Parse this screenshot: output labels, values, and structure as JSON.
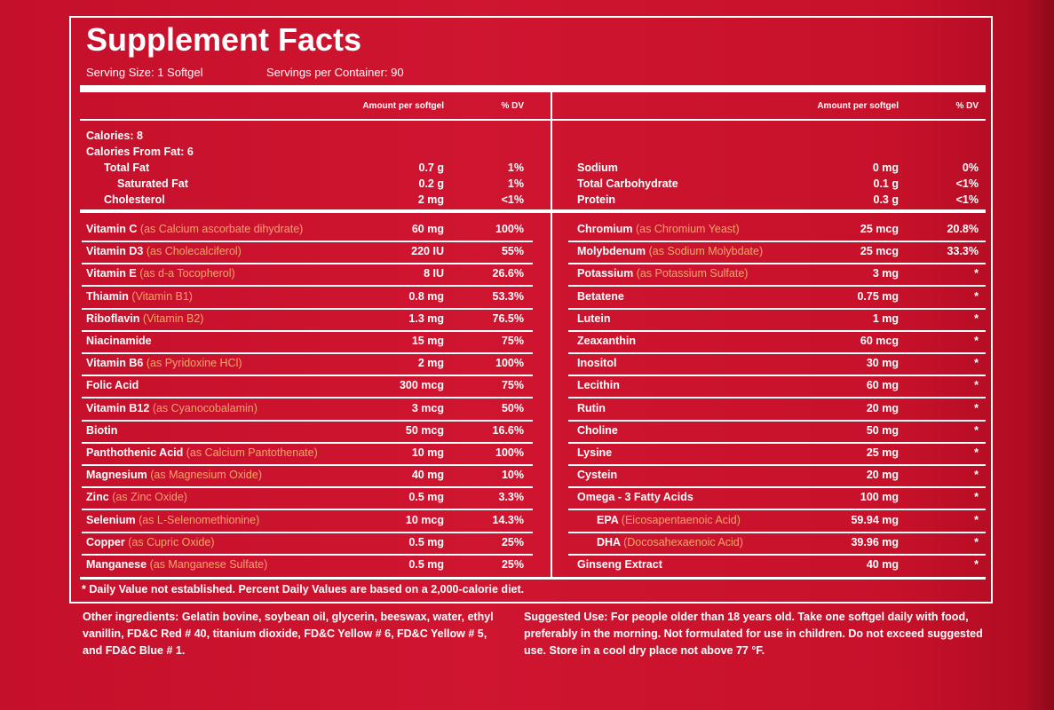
{
  "header": {
    "title": "Supplement Facts",
    "serving_size": "Serving Size: 1 Softgel",
    "servings": "Servings per Container: 90"
  },
  "columns": {
    "left": {
      "amount": "Amount per softgel",
      "dv": "% DV"
    },
    "right": {
      "amount": "Amount per softgel",
      "dv": "% DV"
    }
  },
  "calories": [
    "Calories: 8",
    "Calories From Fat: 6"
  ],
  "top_rows": {
    "left": [
      {
        "name": "Total Fat",
        "amount": "0.7 g",
        "dv": "1%"
      },
      {
        "name": "Saturated Fat",
        "amount": "0.2 g",
        "dv": "1%"
      },
      {
        "name": "Cholesterol",
        "amount": "2 mg",
        "dv": "<1%"
      }
    ],
    "right": [
      {
        "name": "Sodium",
        "amount": "0 mg",
        "dv": "0%"
      },
      {
        "name": "Total Carbohydrate",
        "amount": "0.1 g",
        "dv": "<1%"
      },
      {
        "name": "Protein",
        "amount": "0.3 g",
        "dv": "<1%"
      }
    ]
  },
  "rows": {
    "left": [
      {
        "name": "Vitamin C",
        "source": "(as Calcium ascorbate dihydrate)",
        "amount": "60 mg",
        "dv": "100%"
      },
      {
        "name": "Vitamin D3",
        "source": "(as Cholecalciferol)",
        "amount": "220 IU",
        "dv": "55%"
      },
      {
        "name": "Vitamin E",
        "source": "(as d-a Tocopherol)",
        "amount": "8 IU",
        "dv": "26.6%"
      },
      {
        "name": "Thiamin",
        "source": "(Vitamin B1)",
        "amount": "0.8 mg",
        "dv": "53.3%"
      },
      {
        "name": "Riboflavin",
        "source": "(Vitamin B2)",
        "amount": "1.3 mg",
        "dv": "76.5%"
      },
      {
        "name": "Niacinamide",
        "amount": "15 mg",
        "dv": "75%"
      },
      {
        "name": "Vitamin B6",
        "source": "(as Pyridoxine HCl)",
        "amount": "2 mg",
        "dv": "100%"
      },
      {
        "name": "Folic Acid",
        "amount": "300 mcg",
        "dv": "75%"
      },
      {
        "name": "Vitamin B12",
        "source": "(as Cyanocobalamin)",
        "amount": "3 mcg",
        "dv": "50%"
      },
      {
        "name": "Biotin",
        "amount": "50 mcg",
        "dv": "16.6%"
      },
      {
        "name": "Panthothenic Acid",
        "source": "(as Calcium Pantothenate)",
        "amount": "10 mg",
        "dv": "100%"
      },
      {
        "name": "Magnesium",
        "source": "(as Magnesium Oxide)",
        "amount": "40 mg",
        "dv": "10%"
      },
      {
        "name": "Zinc",
        "source": "(as Zinc Oxide)",
        "amount": "0.5 mg",
        "dv": "3.3%"
      },
      {
        "name": "Selenium",
        "source": "(as L-Selenomethionine)",
        "amount": "10 mcg",
        "dv": "14.3%"
      },
      {
        "name": "Copper",
        "source": "(as Cupric Oxide)",
        "amount": "0.5 mg",
        "dv": "25%"
      },
      {
        "name": "Manganese",
        "source": "(as Manganese Sulfate)",
        "amount": "0.5 mg",
        "dv": "25%"
      }
    ],
    "right": [
      {
        "name": "Chromium",
        "source": "(as Chromium Yeast)",
        "amount": "25 mcg",
        "dv": "20.8%"
      },
      {
        "name": "Molybdenum",
        "source": "(as Sodium Molybdate)",
        "amount": "25 mcg",
        "dv": "33.3%"
      },
      {
        "name": "Potassium",
        "source": "(as Potassium Sulfate)",
        "amount": "3 mg",
        "dv": "*"
      },
      {
        "name": "Betatene",
        "amount": "0.75 mg",
        "dv": "*"
      },
      {
        "name": "Lutein",
        "amount": "1 mg",
        "dv": "*"
      },
      {
        "name": "Zeaxanthin",
        "amount": "60 mcg",
        "dv": "*"
      },
      {
        "name": "Inositol",
        "amount": "30 mg",
        "dv": "*"
      },
      {
        "name": "Lecithin",
        "amount": "60 mg",
        "dv": "*"
      },
      {
        "name": "Rutin",
        "amount": "20 mg",
        "dv": "*"
      },
      {
        "name": "Choline",
        "amount": "50 mg",
        "dv": "*"
      },
      {
        "name": "Lysine",
        "amount": "25 mg",
        "dv": "*"
      },
      {
        "name": "Cystein",
        "amount": "20 mg",
        "dv": "*"
      },
      {
        "name": "Omega - 3 Fatty Acids",
        "amount": "100 mg",
        "dv": "*"
      },
      {
        "name": "EPA",
        "source": "(Eicosapentaenoic Acid)",
        "amount": "59.94 mg",
        "dv": "*"
      },
      {
        "name": "DHA",
        "source": "(Docosahexaenoic Acid)",
        "amount": "39.96 mg",
        "dv": "*"
      },
      {
        "name": "Ginseng Extract",
        "amount": "40 mg",
        "dv": "*"
      }
    ]
  },
  "footnote": "* Daily Value not established. Percent Daily Values are based on a 2,000-calorie diet.",
  "other_ingredients": "Other ingredients: Gelatin bovine, soybean oil, glycerin, beeswax, water, ethyl vanillin, FD&C Red # 40, titanium dioxide, FD&C Yellow # 6, FD&C Yellow # 5, and FD&C Blue # 1.",
  "suggested_use": "Suggested Use: For people older than 18 years old. Take one softgel daily with food, preferably in the morning. Not formulated for use in children. Do not exceed suggested use.  Store in a cool dry place not above 77 °F."
}
